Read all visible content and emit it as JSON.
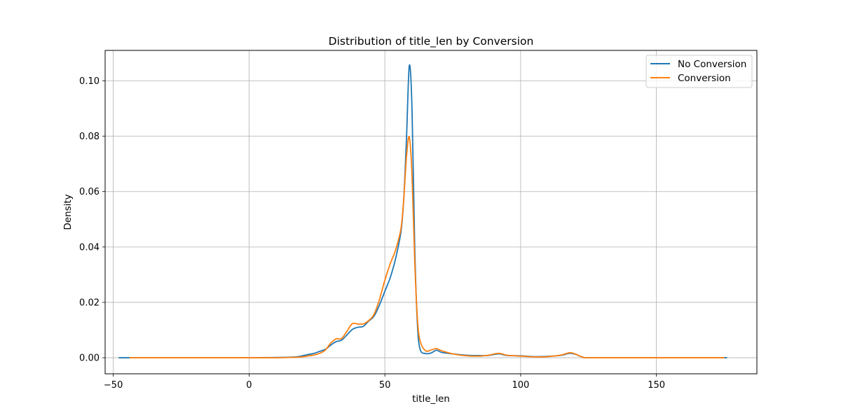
{
  "chart_data": {
    "type": "line",
    "title": "Distribution of title_len by Conversion",
    "xlabel": "title_len",
    "ylabel": "Density",
    "xlim": [
      -53,
      187
    ],
    "ylim": [
      -0.0058,
      0.111
    ],
    "xticks": [
      -50,
      0,
      50,
      100,
      150
    ],
    "xtick_labels": [
      "−50",
      "0",
      "50",
      "100",
      "150"
    ],
    "yticks": [
      0.0,
      0.02,
      0.04,
      0.06,
      0.08,
      0.1
    ],
    "ytick_labels": [
      "0.00",
      "0.02",
      "0.04",
      "0.06",
      "0.08",
      "0.10"
    ],
    "grid": true,
    "legend_position": "top-right",
    "series": [
      {
        "name": "No Conversion",
        "color": "#1f77b4",
        "points": [
          [
            -48,
            0.0
          ],
          [
            -20,
            0.0
          ],
          [
            0,
            0.0
          ],
          [
            10,
            0.0001
          ],
          [
            15,
            0.0002
          ],
          [
            18,
            0.0004
          ],
          [
            20,
            0.0008
          ],
          [
            22,
            0.0012
          ],
          [
            24,
            0.0016
          ],
          [
            26,
            0.0023
          ],
          [
            28,
            0.003
          ],
          [
            30,
            0.0045
          ],
          [
            32,
            0.0058
          ],
          [
            34,
            0.0063
          ],
          [
            36,
            0.0082
          ],
          [
            38,
            0.0102
          ],
          [
            40,
            0.011
          ],
          [
            42,
            0.0113
          ],
          [
            44,
            0.0132
          ],
          [
            46,
            0.015
          ],
          [
            48,
            0.019
          ],
          [
            50,
            0.024
          ],
          [
            52,
            0.029
          ],
          [
            54,
            0.036
          ],
          [
            56,
            0.046
          ],
          [
            57,
            0.058
          ],
          [
            58,
            0.08
          ],
          [
            59,
            0.1055
          ],
          [
            60,
            0.09
          ],
          [
            61,
            0.04
          ],
          [
            62,
            0.012
          ],
          [
            63,
            0.003
          ],
          [
            65,
            0.0015
          ],
          [
            67,
            0.0017
          ],
          [
            69,
            0.0027
          ],
          [
            71,
            0.0019
          ],
          [
            75,
            0.0014
          ],
          [
            80,
            0.0009
          ],
          [
            85,
            0.0008
          ],
          [
            88,
            0.0008
          ],
          [
            92,
            0.0014
          ],
          [
            95,
            0.0008
          ],
          [
            100,
            0.0007
          ],
          [
            105,
            0.0004
          ],
          [
            110,
            0.0005
          ],
          [
            115,
            0.0009
          ],
          [
            118,
            0.0016
          ],
          [
            120,
            0.0013
          ],
          [
            123,
            0.0002
          ],
          [
            126,
            0.0
          ],
          [
            150,
            0.0
          ],
          [
            176,
            0.0
          ]
        ]
      },
      {
        "name": "Conversion",
        "color": "#ff7f0e",
        "points": [
          [
            -44,
            0.0
          ],
          [
            -20,
            0.0
          ],
          [
            0,
            0.0
          ],
          [
            10,
            0.0
          ],
          [
            15,
            0.0001
          ],
          [
            18,
            0.0002
          ],
          [
            20,
            0.0004
          ],
          [
            22,
            0.0007
          ],
          [
            24,
            0.001
          ],
          [
            26,
            0.0016
          ],
          [
            28,
            0.0027
          ],
          [
            30,
            0.0052
          ],
          [
            32,
            0.0068
          ],
          [
            34,
            0.0069
          ],
          [
            36,
            0.0095
          ],
          [
            38,
            0.0123
          ],
          [
            40,
            0.0122
          ],
          [
            42,
            0.0122
          ],
          [
            44,
            0.0134
          ],
          [
            46,
            0.0156
          ],
          [
            48,
            0.021
          ],
          [
            50,
            0.028
          ],
          [
            52,
            0.034
          ],
          [
            54,
            0.039
          ],
          [
            56,
            0.047
          ],
          [
            57,
            0.058
          ],
          [
            58,
            0.073
          ],
          [
            59,
            0.0797
          ],
          [
            60,
            0.066
          ],
          [
            61,
            0.035
          ],
          [
            62,
            0.014
          ],
          [
            63,
            0.006
          ],
          [
            65,
            0.0025
          ],
          [
            67,
            0.0028
          ],
          [
            69,
            0.0033
          ],
          [
            71,
            0.0025
          ],
          [
            75,
            0.0014
          ],
          [
            80,
            0.0007
          ],
          [
            85,
            0.0006
          ],
          [
            88,
            0.0009
          ],
          [
            92,
            0.0016
          ],
          [
            95,
            0.0009
          ],
          [
            100,
            0.0006
          ],
          [
            105,
            0.0003
          ],
          [
            110,
            0.0004
          ],
          [
            115,
            0.001
          ],
          [
            118,
            0.0018
          ],
          [
            120,
            0.0014
          ],
          [
            123,
            0.0002
          ],
          [
            126,
            0.0
          ],
          [
            150,
            0.0
          ],
          [
            175,
            0.0
          ]
        ]
      }
    ]
  }
}
